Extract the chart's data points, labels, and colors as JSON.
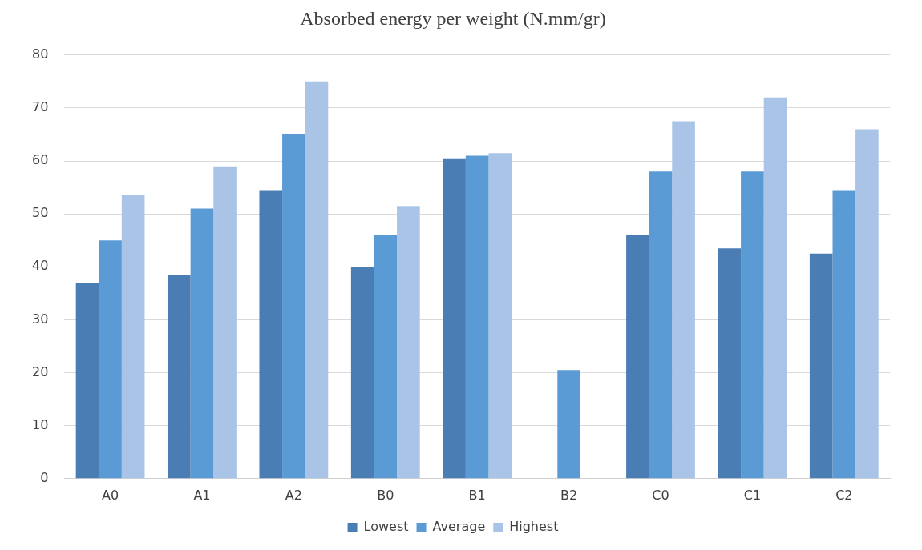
{
  "chart_data": {
    "type": "bar",
    "title": "Absorbed energy per weight (N.mm/gr)",
    "categories": [
      "A0",
      "A1",
      "A2",
      "B0",
      "B1",
      "B2",
      "C0",
      "C1",
      "C2"
    ],
    "series": [
      {
        "name": "Lowest",
        "color": "#4a7db3",
        "values": [
          37,
          38.5,
          54.5,
          40,
          60.5,
          null,
          46,
          43.5,
          42.5
        ]
      },
      {
        "name": "Average",
        "color": "#5b9bd5",
        "values": [
          45,
          51,
          65,
          46,
          61,
          20.5,
          58,
          58,
          54.5
        ]
      },
      {
        "name": "Highest",
        "color": "#a9c4e6",
        "values": [
          53.5,
          59,
          75,
          51.5,
          61.5,
          null,
          67.5,
          72,
          66
        ]
      }
    ],
    "ylim": [
      0,
      80
    ],
    "yticks": [
      0,
      10,
      20,
      30,
      40,
      50,
      60,
      70,
      80
    ],
    "grid": "y",
    "legend": "bottom"
  }
}
